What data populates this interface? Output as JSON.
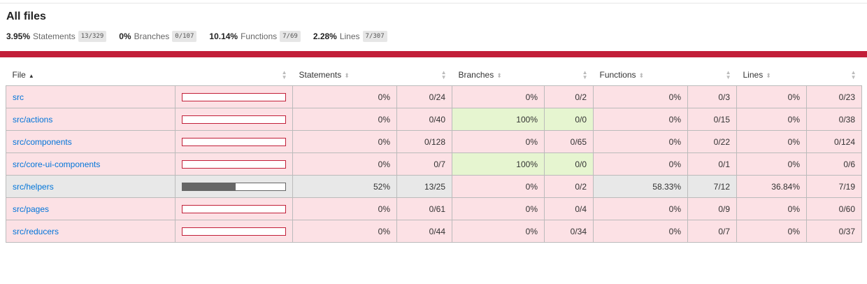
{
  "page": {
    "title": "All files"
  },
  "summary": [
    {
      "pct": "3.95%",
      "label": "Statements",
      "frac": "13/329"
    },
    {
      "pct": "0%",
      "label": "Branches",
      "frac": "0/107"
    },
    {
      "pct": "10.14%",
      "label": "Functions",
      "frac": "7/69"
    },
    {
      "pct": "2.28%",
      "label": "Lines",
      "frac": "7/307"
    }
  ],
  "colors": {
    "low_bg": "#fce1e5",
    "medium_bg": "#e8e8e8",
    "high_bg": "#e6f5d0",
    "accent_red": "#c21f39",
    "link": "#0074d9"
  },
  "table": {
    "headers": {
      "file": "File",
      "statements": "Statements",
      "branches": "Branches",
      "functions": "Functions",
      "lines": "Lines"
    },
    "sort_icons": {
      "ascending": "sort-ascending-icon",
      "sortable": "sort-icon"
    },
    "rows": [
      {
        "file": "src",
        "level": "low",
        "coverage": 0,
        "statements_pct": "0%",
        "statements_frac": "0/24",
        "branches_pct": "0%",
        "branches_frac": "0/2",
        "branches_level": "low",
        "functions_pct": "0%",
        "functions_frac": "0/3",
        "lines_pct": "0%",
        "lines_frac": "0/23"
      },
      {
        "file": "src/actions",
        "level": "low",
        "coverage": 0,
        "statements_pct": "0%",
        "statements_frac": "0/40",
        "branches_pct": "100%",
        "branches_frac": "0/0",
        "branches_level": "high",
        "functions_pct": "0%",
        "functions_frac": "0/15",
        "lines_pct": "0%",
        "lines_frac": "0/38"
      },
      {
        "file": "src/components",
        "level": "low",
        "coverage": 0,
        "statements_pct": "0%",
        "statements_frac": "0/128",
        "branches_pct": "0%",
        "branches_frac": "0/65",
        "branches_level": "low",
        "functions_pct": "0%",
        "functions_frac": "0/22",
        "lines_pct": "0%",
        "lines_frac": "0/124"
      },
      {
        "file": "src/core-ui-components",
        "level": "low",
        "coverage": 0,
        "statements_pct": "0%",
        "statements_frac": "0/7",
        "branches_pct": "100%",
        "branches_frac": "0/0",
        "branches_level": "high",
        "functions_pct": "0%",
        "functions_frac": "0/1",
        "lines_pct": "0%",
        "lines_frac": "0/6"
      },
      {
        "file": "src/helpers",
        "level": "medium",
        "coverage": 52,
        "statements_pct": "52%",
        "statements_frac": "13/25",
        "branches_pct": "0%",
        "branches_frac": "0/2",
        "branches_level": "low",
        "functions_pct": "58.33%",
        "functions_frac": "7/12",
        "lines_pct": "36.84%",
        "lines_frac": "7/19"
      },
      {
        "file": "src/pages",
        "level": "low",
        "coverage": 0,
        "statements_pct": "0%",
        "statements_frac": "0/61",
        "branches_pct": "0%",
        "branches_frac": "0/4",
        "branches_level": "low",
        "functions_pct": "0%",
        "functions_frac": "0/9",
        "lines_pct": "0%",
        "lines_frac": "0/60"
      },
      {
        "file": "src/reducers",
        "level": "low",
        "coverage": 0,
        "statements_pct": "0%",
        "statements_frac": "0/44",
        "branches_pct": "0%",
        "branches_frac": "0/34",
        "branches_level": "low",
        "functions_pct": "0%",
        "functions_frac": "0/7",
        "lines_pct": "0%",
        "lines_frac": "0/37"
      }
    ]
  }
}
